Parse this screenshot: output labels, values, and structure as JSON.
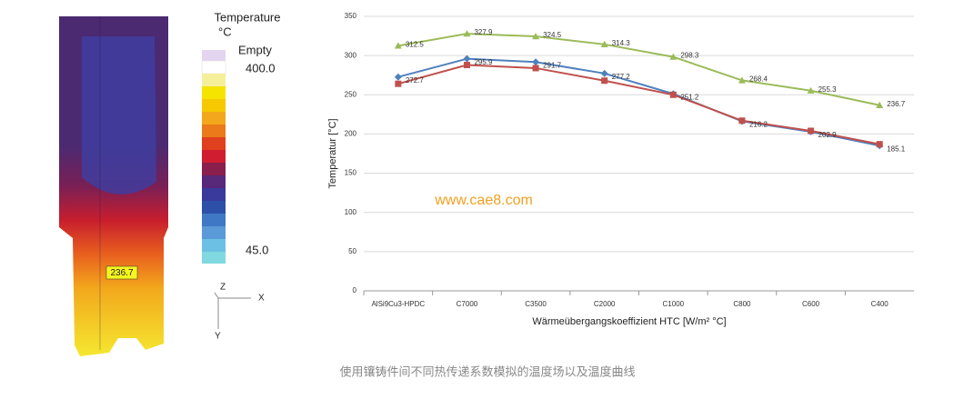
{
  "figure": {
    "legend_title": "Temperature",
    "legend_unit": "°C",
    "legend_empty": "Empty",
    "legend_max": "400.0",
    "legend_min": "45.0",
    "probe_label": "236.7",
    "axis_z": "Z",
    "axis_x": "X",
    "axis_y": "Y"
  },
  "watermark": "www.cae8.com",
  "caption": "使用镶铸件间不同热传递系数模拟的温度场以及温度曲线",
  "chart_data": {
    "type": "line",
    "categories": [
      "AlSi9Cu3-HPDC",
      "C7000",
      "C3500",
      "C2000",
      "C1000",
      "C800",
      "C600",
      "C400"
    ],
    "series": [
      {
        "color": "#9bbb59",
        "marker": "triangle",
        "values": [
          312.5,
          327.9,
          324.5,
          314.3,
          298.3,
          268.4,
          255.3,
          236.7
        ],
        "labels": true
      },
      {
        "color": "#4f81bd",
        "marker": "diamond",
        "values": [
          272.7,
          295.9,
          291.7,
          277.2,
          251.2,
          216.2,
          202.9,
          185.1
        ],
        "labels": true
      },
      {
        "color": "#c0504d",
        "marker": "square",
        "values": [
          264,
          288,
          284,
          268,
          250,
          217,
          204,
          187
        ],
        "labels": false
      }
    ],
    "ylabel": "Temperatur [°C]",
    "xlabel": "Wärmeübergangskoeffizient HTC [W/m² °C]",
    "ylim": [
      0,
      350
    ],
    "yticks": [
      0,
      50,
      100,
      150,
      200,
      250,
      300,
      350
    ],
    "grid": true
  }
}
